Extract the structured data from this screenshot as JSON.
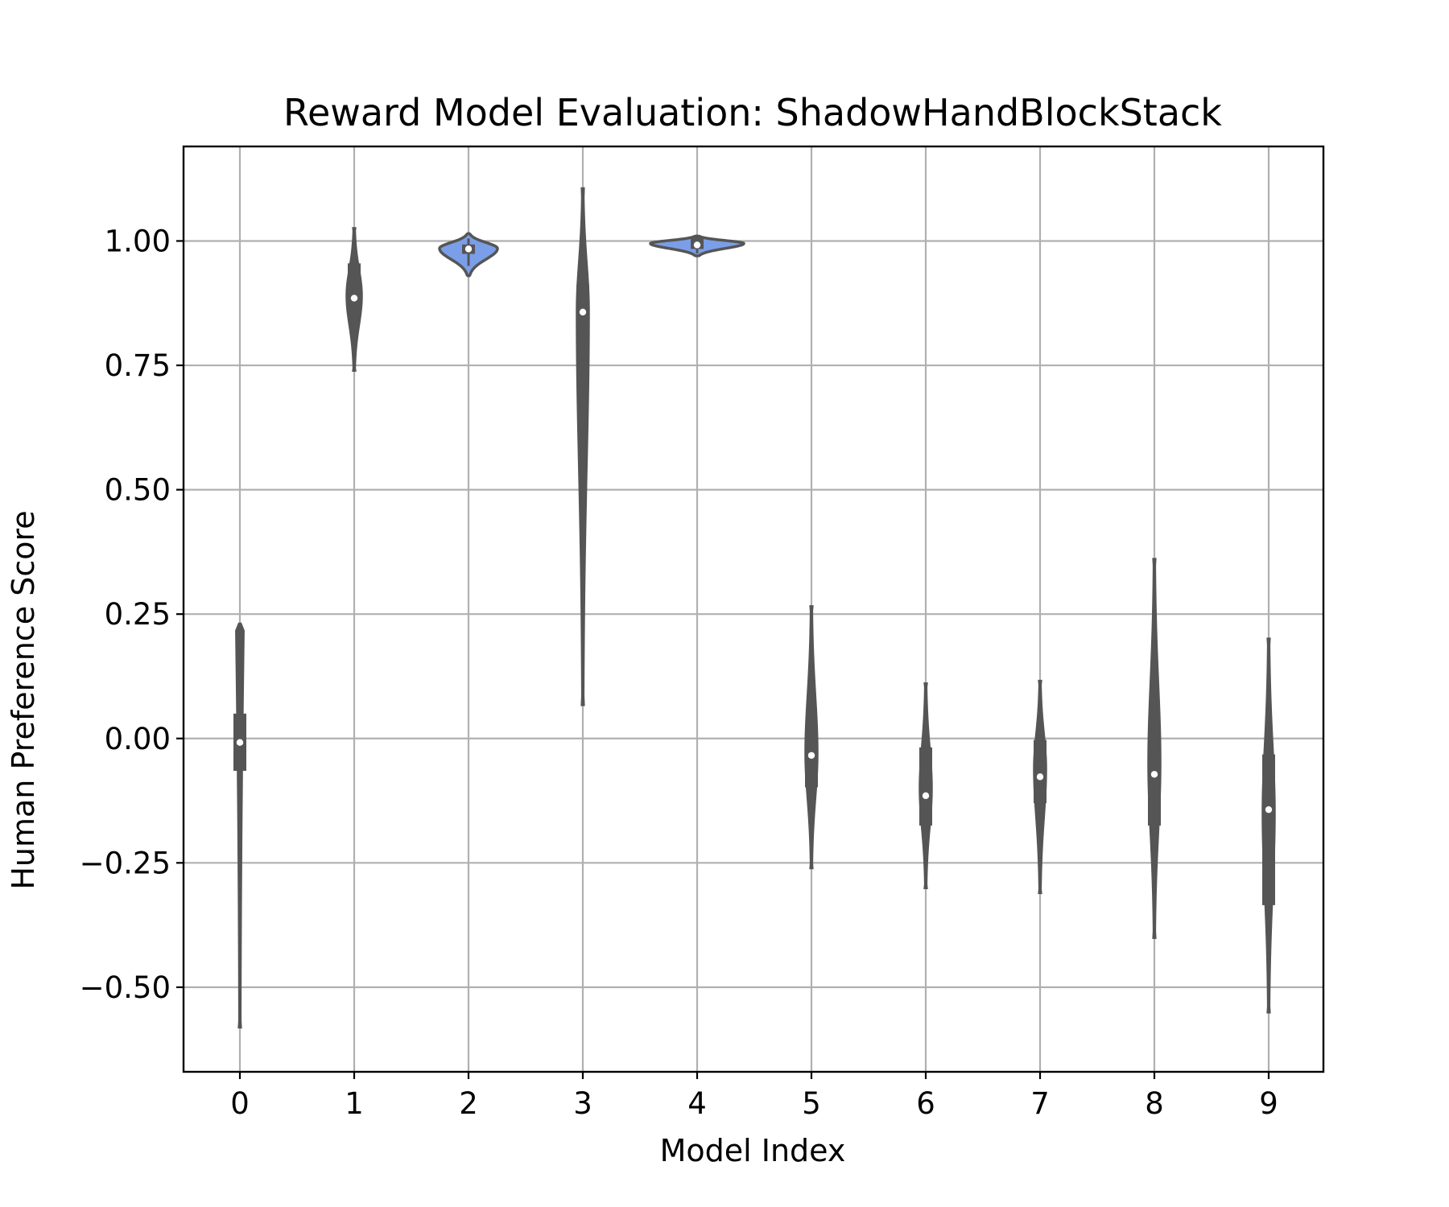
{
  "chart_data": {
    "type": "violin",
    "title": "Reward Model Evaluation: ShadowHandBlockStack",
    "xlabel": "Model Index",
    "ylabel": "Human Preference Score",
    "categories": [
      "0",
      "1",
      "2",
      "3",
      "4",
      "5",
      "6",
      "7",
      "8",
      "9"
    ],
    "ylim": [
      -0.67,
      1.19
    ],
    "yticks": [
      -0.5,
      -0.25,
      0.0,
      0.25,
      0.5,
      0.75,
      1.0
    ],
    "ytick_labels": [
      "−0.50",
      "−0.25",
      "0.00",
      "0.25",
      "0.50",
      "0.75",
      "1.00"
    ],
    "grid": true,
    "violin_fill_color": "#7b9ee8",
    "box_color": "#555555",
    "series": [
      {
        "name": "0",
        "min": -0.58,
        "q1": -0.065,
        "median": -0.008,
        "q3": 0.05,
        "max": 0.23,
        "whisker_low": -0.155,
        "whisker_high": 0.11,
        "density_peak": 0.75,
        "max_half_width": 7
      },
      {
        "name": "1",
        "min": 0.74,
        "q1": 0.843,
        "median": 0.885,
        "q3": 0.955,
        "max": 1.025,
        "whisker_low": 0.785,
        "whisker_high": 1.0,
        "density_peak": 0.89,
        "max_half_width": 9
      },
      {
        "name": "2",
        "min": 0.93,
        "q1": 0.974,
        "median": 0.984,
        "q3": 0.993,
        "max": 1.015,
        "whisker_low": 0.95,
        "whisker_high": 1.005,
        "density_peak": 0.985,
        "max_half_width": 36
      },
      {
        "name": "3",
        "min": 0.068,
        "q1": 0.73,
        "median": 0.857,
        "q3": 0.912,
        "max": 1.105,
        "whisker_low": 0.62,
        "whisker_high": 1.0,
        "density_peak": 0.86,
        "max_half_width": 7
      },
      {
        "name": "4",
        "min": 0.97,
        "q1": 0.984,
        "median": 0.992,
        "q3": 1.008,
        "max": 1.01,
        "whisker_low": 0.975,
        "whisker_high": 1.01,
        "density_peak": 0.995,
        "max_half_width": 58
      },
      {
        "name": "5",
        "min": -0.26,
        "q1": -0.098,
        "median": -0.034,
        "q3": 0.018,
        "max": 0.265,
        "whisker_low": -0.175,
        "whisker_high": 0.115,
        "density_peak": -0.03,
        "max_half_width": 7
      },
      {
        "name": "6",
        "min": -0.3,
        "q1": -0.175,
        "median": -0.115,
        "q3": -0.018,
        "max": 0.11,
        "whisker_low": -0.23,
        "whisker_high": 0.04,
        "density_peak": -0.1,
        "max_half_width": 7
      },
      {
        "name": "7",
        "min": -0.31,
        "q1": -0.13,
        "median": -0.077,
        "q3": -0.003,
        "max": 0.115,
        "whisker_low": -0.24,
        "whisker_high": 0.045,
        "density_peak": -0.06,
        "max_half_width": 7
      },
      {
        "name": "8",
        "min": -0.4,
        "q1": -0.175,
        "median": -0.072,
        "q3": 0.018,
        "max": 0.36,
        "whisker_low": -0.275,
        "whisker_high": 0.235,
        "density_peak": -0.05,
        "max_half_width": 7
      },
      {
        "name": "9",
        "min": -0.55,
        "q1": -0.335,
        "median": -0.143,
        "q3": -0.032,
        "max": 0.2,
        "whisker_low": -0.4,
        "whisker_high": 0.055,
        "density_peak": -0.15,
        "max_half_width": 7
      }
    ]
  }
}
